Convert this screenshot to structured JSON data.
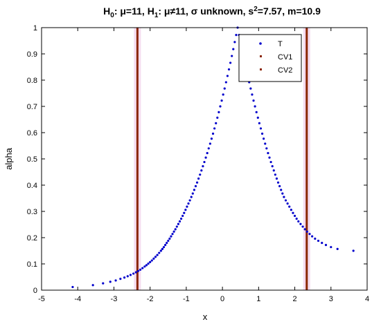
{
  "chart_data": {
    "type": "scatter",
    "title": {
      "h0_label": "H",
      "h0_sub": "0",
      "h0_rest": ": μ=11, ",
      "h1_label": "H",
      "h1_sub": "1",
      "h1_rest": ": μ≠11, σ unknown,  s",
      "s_sup": "2",
      "tail": "=7.57, m=10.9"
    },
    "xlabel": "x",
    "ylabel": "alpha",
    "xlim": [
      -5,
      4
    ],
    "ylim": [
      0,
      1
    ],
    "xticks": [
      "-5",
      "-4",
      "-3",
      "-2",
      "-1",
      "0",
      "1",
      "2",
      "3",
      "4"
    ],
    "yticks": [
      "0",
      "0.1",
      "0.2",
      "0.3",
      "0.4",
      "0.5",
      "0.6",
      "0.7",
      "0.8",
      "0.9",
      "1"
    ],
    "grid": false,
    "legend_position": "top-right",
    "series": [
      {
        "name": "T",
        "color": "#0000cc",
        "marker": "dot",
        "x": [
          -4.14,
          -3.58,
          -3.3,
          -3.1,
          -2.95,
          -2.82,
          -2.71,
          -2.62,
          -2.54,
          -2.46,
          -2.39,
          -2.33,
          -2.27,
          -2.21,
          -2.15,
          -2.1,
          -2.05,
          -2.0,
          -1.95,
          -1.9,
          -1.85,
          -1.8,
          -1.75,
          -1.7,
          -1.66,
          -1.62,
          -1.58,
          -1.54,
          -1.5,
          -1.46,
          -1.42,
          -1.38,
          -1.34,
          -1.3,
          -1.26,
          -1.22,
          -1.18,
          -1.14,
          -1.1,
          -1.06,
          -1.02,
          -0.98,
          -0.94,
          -0.9,
          -0.86,
          -0.82,
          -0.78,
          -0.74,
          -0.7,
          -0.66,
          -0.62,
          -0.58,
          -0.54,
          -0.5,
          -0.46,
          -0.42,
          -0.38,
          -0.34,
          -0.3,
          -0.26,
          -0.22,
          -0.18,
          -0.14,
          -0.1,
          -0.06,
          -0.02,
          0.02,
          0.06,
          0.1,
          0.14,
          0.18,
          0.22,
          0.26,
          0.3,
          0.34,
          0.38,
          0.42,
          0.46,
          0.5,
          0.54,
          0.58,
          0.62,
          0.66,
          0.7,
          0.74,
          0.78,
          0.82,
          0.86,
          0.9,
          0.94,
          0.98,
          1.02,
          1.06,
          1.1,
          1.14,
          1.18,
          1.22,
          1.26,
          1.3,
          1.34,
          1.38,
          1.42,
          1.46,
          1.5,
          1.54,
          1.58,
          1.62,
          1.66,
          1.7,
          1.75,
          1.8,
          1.85,
          1.9,
          1.95,
          2.0,
          2.05,
          2.1,
          2.16,
          2.22,
          2.28,
          2.34,
          2.41,
          2.48,
          2.56,
          2.65,
          2.75,
          2.86,
          3.0,
          3.18,
          3.62
        ],
        "y": [
          0.012,
          0.019,
          0.026,
          0.032,
          0.037,
          0.043,
          0.048,
          0.053,
          0.058,
          0.063,
          0.068,
          0.073,
          0.078,
          0.084,
          0.09,
          0.095,
          0.101,
          0.107,
          0.113,
          0.12,
          0.127,
          0.134,
          0.142,
          0.15,
          0.157,
          0.164,
          0.172,
          0.18,
          0.188,
          0.196,
          0.205,
          0.214,
          0.223,
          0.232,
          0.242,
          0.252,
          0.262,
          0.272,
          0.283,
          0.294,
          0.306,
          0.318,
          0.33,
          0.342,
          0.355,
          0.368,
          0.382,
          0.396,
          0.41,
          0.425,
          0.44,
          0.456,
          0.472,
          0.488,
          0.505,
          0.522,
          0.54,
          0.558,
          0.577,
          0.596,
          0.616,
          0.636,
          0.657,
          0.678,
          0.7,
          0.722,
          0.745,
          0.768,
          0.792,
          0.816,
          0.841,
          0.866,
          0.892,
          0.918,
          0.945,
          0.972,
          1.0,
          0.972,
          0.945,
          0.918,
          0.892,
          0.866,
          0.841,
          0.816,
          0.792,
          0.768,
          0.745,
          0.722,
          0.7,
          0.678,
          0.657,
          0.636,
          0.616,
          0.596,
          0.577,
          0.558,
          0.54,
          0.522,
          0.505,
          0.488,
          0.472,
          0.456,
          0.44,
          0.425,
          0.41,
          0.396,
          0.382,
          0.368,
          0.355,
          0.342,
          0.33,
          0.318,
          0.306,
          0.294,
          0.283,
          0.272,
          0.262,
          0.252,
          0.242,
          0.232,
          0.223,
          0.214,
          0.205,
          0.196,
          0.188,
          0.18,
          0.172,
          0.164,
          0.157,
          0.15
        ]
      },
      {
        "name": "CV1",
        "color": "#8b2500",
        "type": "vline",
        "x": -2.35
      },
      {
        "name": "CV2",
        "color": "#8b2500",
        "type": "vline",
        "x": 2.33
      }
    ]
  }
}
